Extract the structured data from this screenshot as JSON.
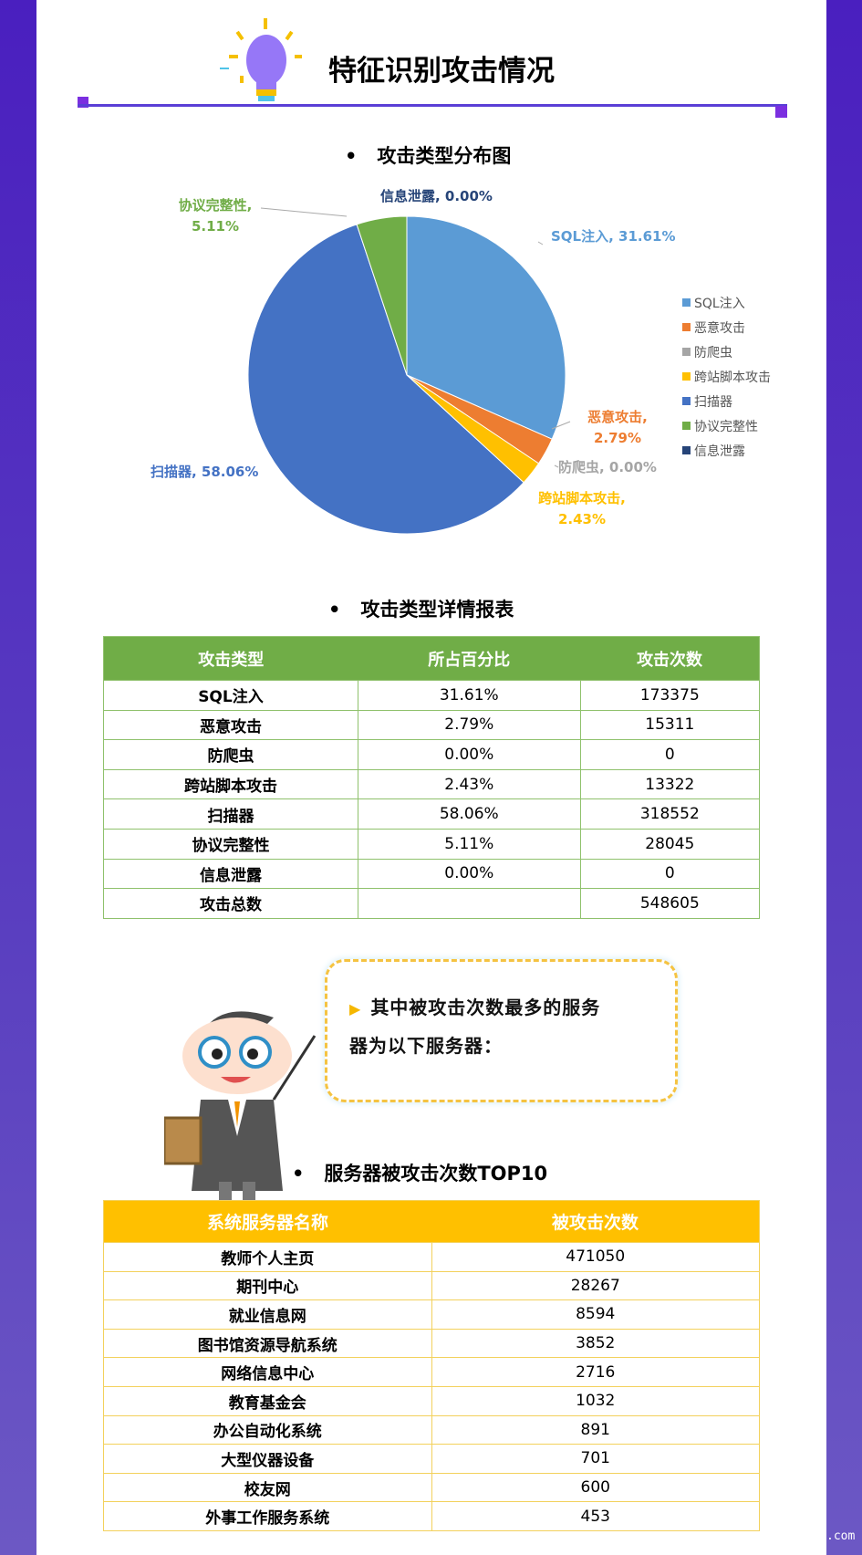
{
  "header": {
    "title": "特征识别攻击情况"
  },
  "pie_section": {
    "title": "攻击类型分布图"
  },
  "chart_data": {
    "type": "pie",
    "categories": [
      "SQL注入",
      "恶意攻击",
      "防爬虫",
      "跨站脚本攻击",
      "扫描器",
      "协议完整性",
      "信息泄露"
    ],
    "values": [
      31.61,
      2.79,
      0.0,
      2.43,
      58.06,
      5.11,
      0.0
    ],
    "labels": [
      "SQL注入, 31.61%",
      "恶意攻击, 2.79%",
      "防爬虫, 0.00%",
      "跨站脚本攻击, 2.43%",
      "扫描器, 58.06%",
      "协议完整性, 5.11%",
      "信息泄露, 0.00%"
    ],
    "colors": [
      "#5b9bd5",
      "#ed7d31",
      "#a5a5a5",
      "#ffc000",
      "#4472c4",
      "#70ad47",
      "#264478"
    ],
    "legend": "right"
  },
  "table1": {
    "title": "攻击类型详情报表",
    "headers": [
      "攻击类型",
      "所占百分比",
      "攻击次数"
    ],
    "rows": [
      [
        "SQL注入",
        "31.61%",
        "173375"
      ],
      [
        "恶意攻击",
        "2.79%",
        "15311"
      ],
      [
        "防爬虫",
        "0.00%",
        "0"
      ],
      [
        "跨站脚本攻击",
        "2.43%",
        "13322"
      ],
      [
        "扫描器",
        "58.06%",
        "318552"
      ],
      [
        "协议完整性",
        "5.11%",
        "28045"
      ],
      [
        "信息泄露",
        "0.00%",
        "0"
      ],
      [
        "攻击总数",
        "",
        "548605"
      ]
    ]
  },
  "bubble": {
    "line1": "其中被攻击次数最多的服务",
    "line2": "器为以下服务器："
  },
  "table2": {
    "title": "服务器被攻击次数TOP10",
    "headers": [
      "系统服务器名称",
      "被攻击次数"
    ],
    "rows": [
      [
        "教师个人主页",
        "471050"
      ],
      [
        "期刊中心",
        "28267"
      ],
      [
        "就业信息网",
        "8594"
      ],
      [
        "图书馆资源导航系统",
        "3852"
      ],
      [
        "网络信息中心",
        "2716"
      ],
      [
        "教育基金会",
        "1032"
      ],
      [
        "办公自动化系统",
        "891"
      ],
      [
        "大型仪器设备",
        "701"
      ],
      [
        "校友网",
        "600"
      ],
      [
        "外事工作服务系统",
        "453"
      ]
    ]
  },
  "watermark": ".com"
}
